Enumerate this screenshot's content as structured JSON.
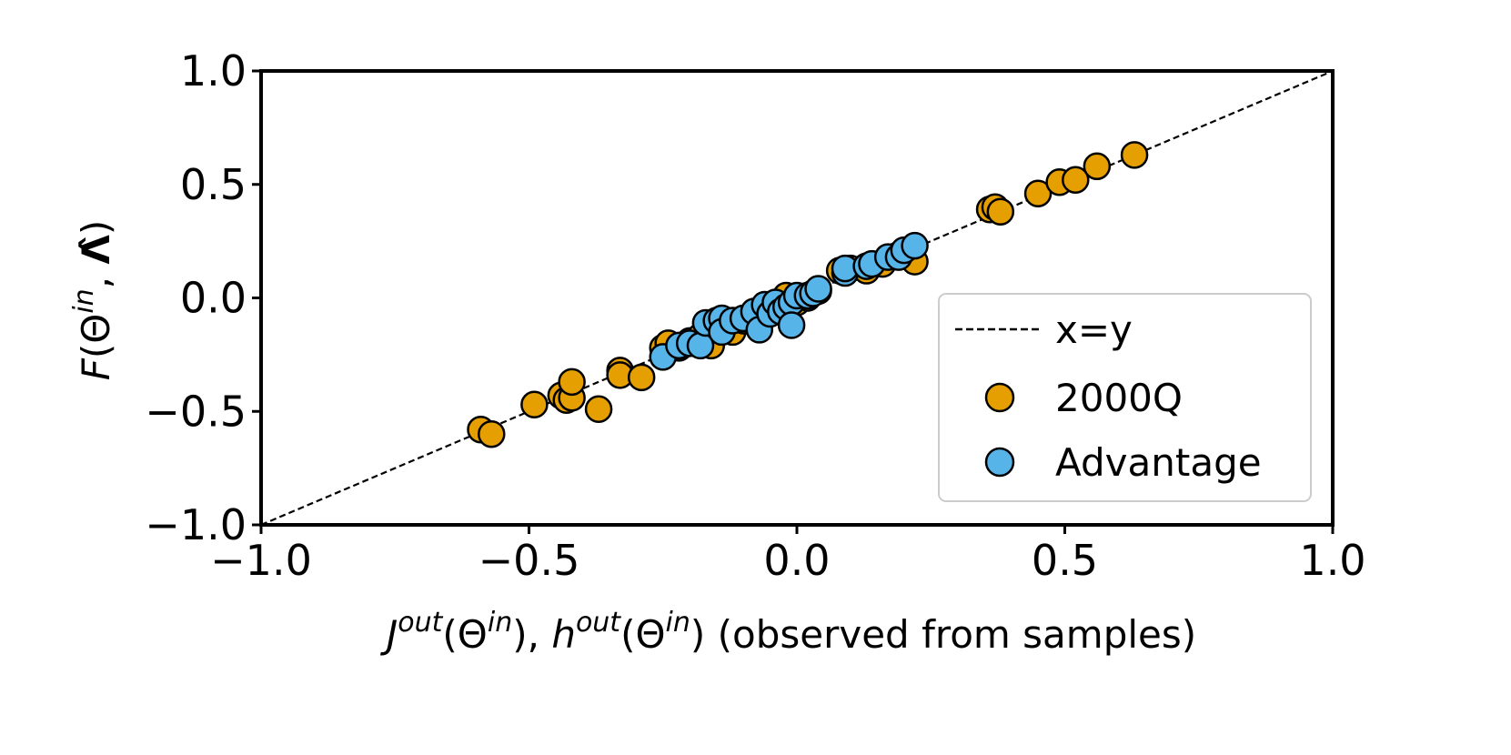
{
  "chart_data": {
    "type": "scatter",
    "title": "",
    "xlim": [
      -1.0,
      1.0
    ],
    "ylim": [
      -1.0,
      1.0
    ],
    "xticks": [
      -1.0,
      -0.5,
      0.0,
      0.5,
      1.0
    ],
    "yticks": [
      -1.0,
      -0.5,
      0.0,
      0.5,
      1.0
    ],
    "xtick_labels": [
      "−1.0",
      "−0.5",
      "0.0",
      "0.5",
      "1.0"
    ],
    "ytick_labels": [
      "−1.0",
      "−0.5",
      "0.0",
      "0.5",
      "1.0"
    ],
    "xlabel": {
      "J": "J",
      "out1": "out",
      "paren1": "(Θ",
      "in1": "in",
      "mid": "), ",
      "h": "h",
      "out2": "out",
      "paren2": "(Θ",
      "in2": "in",
      "tail": ") (observed from samples)"
    },
    "ylabel": {
      "F": "F",
      "paren": "(Θ",
      "in": "in",
      "comma": ", ",
      "lambda": "Λ̂",
      "close": ")"
    },
    "grid": false,
    "legend_position": "center-right",
    "reference_line": {
      "label": "x=y",
      "style": "dashed",
      "color": "#000000"
    },
    "series": [
      {
        "name": "2000Q",
        "color": "#E69F00",
        "points": [
          [
            -0.59,
            -0.58
          ],
          [
            -0.57,
            -0.6
          ],
          [
            -0.49,
            -0.47
          ],
          [
            -0.44,
            -0.43
          ],
          [
            -0.43,
            -0.45
          ],
          [
            -0.42,
            -0.44
          ],
          [
            -0.42,
            -0.37
          ],
          [
            -0.37,
            -0.49
          ],
          [
            -0.33,
            -0.32
          ],
          [
            -0.33,
            -0.34
          ],
          [
            -0.29,
            -0.35
          ],
          [
            -0.25,
            -0.22
          ],
          [
            -0.24,
            -0.2
          ],
          [
            -0.22,
            -0.22
          ],
          [
            -0.2,
            -0.19
          ],
          [
            -0.18,
            -0.17
          ],
          [
            -0.16,
            -0.21
          ],
          [
            -0.15,
            -0.13
          ],
          [
            -0.12,
            -0.15
          ],
          [
            -0.1,
            -0.1
          ],
          [
            -0.08,
            -0.07
          ],
          [
            -0.06,
            -0.08
          ],
          [
            -0.04,
            -0.03
          ],
          [
            -0.02,
            0.01
          ],
          [
            0.0,
            -0.02
          ],
          [
            0.02,
            0.0
          ],
          [
            0.04,
            0.03
          ],
          [
            0.08,
            0.12
          ],
          [
            0.1,
            0.13
          ],
          [
            0.13,
            0.12
          ],
          [
            0.16,
            0.15
          ],
          [
            0.19,
            0.19
          ],
          [
            0.22,
            0.16
          ],
          [
            0.36,
            0.39
          ],
          [
            0.37,
            0.4
          ],
          [
            0.38,
            0.38
          ],
          [
            0.45,
            0.46
          ],
          [
            0.49,
            0.51
          ],
          [
            0.52,
            0.52
          ],
          [
            0.56,
            0.58
          ],
          [
            0.63,
            0.63
          ]
        ]
      },
      {
        "name": "Advantage",
        "color": "#56B4E9",
        "points": [
          [
            -0.25,
            -0.26
          ],
          [
            -0.22,
            -0.21
          ],
          [
            -0.2,
            -0.2
          ],
          [
            -0.18,
            -0.21
          ],
          [
            -0.17,
            -0.11
          ],
          [
            -0.15,
            -0.1
          ],
          [
            -0.14,
            -0.09
          ],
          [
            -0.14,
            -0.15
          ],
          [
            -0.12,
            -0.1
          ],
          [
            -0.1,
            -0.09
          ],
          [
            -0.08,
            -0.06
          ],
          [
            -0.07,
            -0.14
          ],
          [
            -0.06,
            -0.03
          ],
          [
            -0.05,
            -0.07
          ],
          [
            -0.04,
            -0.02
          ],
          [
            -0.03,
            -0.06
          ],
          [
            -0.02,
            -0.04
          ],
          [
            -0.01,
            -0.02
          ],
          [
            -0.01,
            -0.12
          ],
          [
            0.0,
            0.01
          ],
          [
            0.02,
            0.01
          ],
          [
            0.03,
            0.02
          ],
          [
            0.04,
            0.04
          ],
          [
            0.09,
            0.11
          ],
          [
            0.09,
            0.13
          ],
          [
            0.13,
            0.14
          ],
          [
            0.14,
            0.15
          ],
          [
            0.17,
            0.18
          ],
          [
            0.19,
            0.18
          ],
          [
            0.2,
            0.21
          ],
          [
            0.22,
            0.23
          ]
        ]
      }
    ]
  }
}
